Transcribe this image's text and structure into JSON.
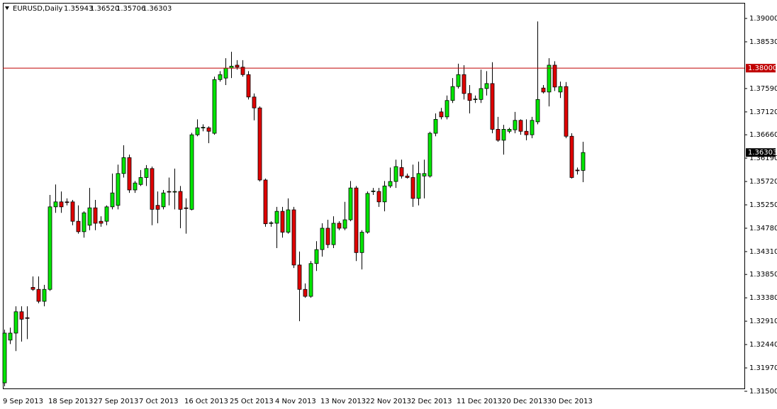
{
  "chart_data": {
    "type": "candlestick",
    "title": "EURUSD,Daily",
    "header_ohlc": [
      "1.35943",
      "1.36520",
      "1.35706",
      "1.36303"
    ],
    "categories": [
      "9 Sep 2013",
      null,
      null,
      null,
      null,
      null,
      null,
      null,
      "18 Sep 2013",
      null,
      null,
      null,
      null,
      null,
      null,
      null,
      "27 Sep 2013",
      null,
      null,
      null,
      null,
      null,
      null,
      null,
      "7 Oct 2013",
      null,
      null,
      null,
      null,
      null,
      null,
      null,
      "16 Oct 2013",
      null,
      null,
      null,
      null,
      null,
      null,
      null,
      "25 Oct 2013",
      null,
      null,
      null,
      null,
      null,
      null,
      null,
      "4 Nov 2013",
      null,
      null,
      null,
      null,
      null,
      null,
      null,
      "13 Nov 2013",
      null,
      null,
      null,
      null,
      null,
      null,
      null,
      "22 Nov 2013",
      null,
      null,
      null,
      null,
      null,
      null,
      null,
      "2 Dec 2013",
      null,
      null,
      null,
      null,
      null,
      null,
      null,
      "11 Dec 2013",
      null,
      null,
      null,
      null,
      null,
      null,
      null,
      "20 Dec 2013",
      null,
      null,
      null,
      null,
      null,
      null,
      null,
      "30 Dec 2013",
      null,
      null,
      null,
      null,
      null,
      null
    ],
    "open": [
      1.3167,
      1.3253,
      1.3267,
      1.331,
      1.3298,
      1.3359,
      1.3355,
      1.3331,
      1.3355,
      1.3521,
      1.3531,
      1.3531,
      1.3531,
      1.3492,
      1.3471,
      1.3484,
      1.3519,
      1.3492,
      1.3492,
      1.3521,
      1.3524,
      1.3588,
      1.362,
      1.3555,
      1.3566,
      1.358,
      1.3598,
      1.3524,
      1.3521,
      1.3552,
      1.3552,
      1.3552,
      1.3519,
      1.3516,
      1.3666,
      1.368,
      1.368,
      1.3669,
      1.3777,
      1.378,
      1.38,
      1.3806,
      1.3802,
      1.3787,
      1.3742,
      1.372,
      1.3575,
      1.3488,
      1.3488,
      1.3512,
      1.347,
      1.3515,
      1.3404,
      1.3355,
      1.3341,
      1.3407,
      1.3435,
      1.3478,
      1.3445,
      1.3488,
      1.3478,
      1.3495,
      1.3559,
      1.3429,
      1.347,
      1.3552,
      1.3552,
      1.3531,
      1.3563,
      1.3572,
      1.36,
      1.3583,
      1.358,
      1.3538,
      1.3583,
      1.3583,
      1.3669,
      1.3712,
      1.3702,
      1.3735,
      1.3763,
      1.3787,
      1.3749,
      1.3737,
      1.3737,
      1.3759,
      1.3769,
      1.3677,
      1.3655,
      1.3673,
      1.3676,
      1.3695,
      1.3673,
      1.3666,
      1.3692,
      1.376,
      1.3752,
      1.3806,
      1.3752,
      1.3763,
      1.3663,
      1.3595,
      1.35943
    ],
    "high": [
      1.3274,
      1.3278,
      1.3321,
      1.3321,
      1.3321,
      1.3381,
      1.3381,
      1.3364,
      1.3545,
      1.3566,
      1.3552,
      1.3538,
      1.3535,
      1.3524,
      1.3512,
      1.3559,
      1.3535,
      1.3502,
      1.3524,
      1.3588,
      1.3606,
      1.3645,
      1.3626,
      1.3573,
      1.3595,
      1.3605,
      1.3602,
      1.3552,
      1.3555,
      1.358,
      1.3598,
      1.3563,
      1.3538,
      1.367,
      1.3697,
      1.3687,
      1.3683,
      1.3783,
      1.3794,
      1.382,
      1.3833,
      1.3816,
      1.3816,
      1.3794,
      1.3749,
      1.3723,
      1.3578,
      1.3492,
      1.3521,
      1.3521,
      1.3538,
      1.3521,
      1.3431,
      1.3367,
      1.3412,
      1.3452,
      1.3488,
      1.3495,
      1.3502,
      1.3492,
      1.3531,
      1.3573,
      1.3563,
      1.3474,
      1.3552,
      1.3559,
      1.3559,
      1.3573,
      1.36,
      1.3616,
      1.3616,
      1.3588,
      1.3606,
      1.3612,
      1.3616,
      1.3672,
      1.3709,
      1.372,
      1.3745,
      1.378,
      1.3809,
      1.3806,
      1.3766,
      1.3745,
      1.3797,
      1.3794,
      1.3812,
      1.3702,
      1.3686,
      1.368,
      1.3712,
      1.3697,
      1.3697,
      1.3702,
      1.3894,
      1.3766,
      1.382,
      1.3814,
      1.3773,
      1.3772,
      1.3669,
      1.36,
      1.3652
    ],
    "low": [
      1.316,
      1.3245,
      1.3231,
      1.325,
      1.3255,
      1.3352,
      1.3327,
      1.3321,
      1.3352,
      1.3509,
      1.3509,
      1.3524,
      1.3484,
      1.3467,
      1.3459,
      1.3474,
      1.3474,
      1.3481,
      1.3484,
      1.3516,
      1.3516,
      1.358,
      1.3549,
      1.3549,
      1.3563,
      1.3563,
      1.3484,
      1.3488,
      1.3516,
      1.3524,
      1.3516,
      1.3478,
      1.3467,
      1.3514,
      1.3663,
      1.3673,
      1.3649,
      1.3666,
      1.3773,
      1.3766,
      1.378,
      1.3797,
      1.3783,
      1.3737,
      1.3695,
      1.3572,
      1.3481,
      1.3481,
      1.3438,
      1.3459,
      1.3467,
      1.3398,
      1.3291,
      1.3338,
      1.3338,
      1.3392,
      1.3421,
      1.3438,
      1.3438,
      1.3474,
      1.3474,
      1.3492,
      1.3412,
      1.3395,
      1.3467,
      1.3545,
      1.3521,
      1.3512,
      1.3559,
      1.3559,
      1.3578,
      1.3578,
      1.3521,
      1.3524,
      1.3538,
      1.358,
      1.3663,
      1.3697,
      1.3697,
      1.373,
      1.3759,
      1.3737,
      1.3709,
      1.373,
      1.373,
      1.3745,
      1.3669,
      1.3652,
      1.3626,
      1.3669,
      1.3669,
      1.3666,
      1.3655,
      1.3659,
      1.3687,
      1.3749,
      1.3723,
      1.3754,
      1.374,
      1.3659,
      1.3578,
      1.3586,
      1.35706
    ],
    "close": [
      1.3267,
      1.3267,
      1.331,
      1.3295,
      1.3297,
      1.3355,
      1.3331,
      1.3355,
      1.3521,
      1.3531,
      1.3521,
      1.353,
      1.3492,
      1.3471,
      1.3509,
      1.3519,
      1.3488,
      1.3488,
      1.3521,
      1.3549,
      1.3588,
      1.362,
      1.3555,
      1.3569,
      1.358,
      1.3598,
      1.3516,
      1.3516,
      1.3549,
      1.3551,
      1.3552,
      1.3516,
      1.3518,
      1.3666,
      1.368,
      1.3681,
      1.3673,
      1.3777,
      1.3787,
      1.38,
      1.3804,
      1.3802,
      1.3787,
      1.3742,
      1.372,
      1.3575,
      1.3487,
      1.3489,
      1.3512,
      1.347,
      1.3515,
      1.3404,
      1.3355,
      1.3341,
      1.3407,
      1.3435,
      1.3478,
      1.3445,
      1.3488,
      1.3478,
      1.3495,
      1.3559,
      1.3429,
      1.347,
      1.3548,
      1.3553,
      1.3531,
      1.3563,
      1.3572,
      1.3602,
      1.3583,
      1.358,
      1.3538,
      1.3588,
      1.3588,
      1.3669,
      1.3697,
      1.3702,
      1.3735,
      1.3763,
      1.3787,
      1.3749,
      1.3735,
      1.3738,
      1.3759,
      1.3769,
      1.3677,
      1.3655,
      1.3677,
      1.3677,
      1.3695,
      1.3673,
      1.3666,
      1.3695,
      1.3737,
      1.3752,
      1.3806,
      1.3762,
      1.3763,
      1.3663,
      1.358,
      1.3594,
      1.36303
    ],
    "up_color": "#00e600",
    "down_color": "#e00000",
    "ylim": [
      1.315,
      1.39314
    ],
    "yticks": [
      {
        "value": 1.39,
        "label": "1.39000"
      },
      {
        "value": 1.3853,
        "label": "1.38530"
      },
      {
        "value": 1.3759,
        "label": "1.37590"
      },
      {
        "value": 1.3712,
        "label": "1.37120"
      },
      {
        "value": 1.3666,
        "label": "1.36660"
      },
      {
        "value": 1.3619,
        "label": "1.36190"
      },
      {
        "value": 1.3572,
        "label": "1.35720"
      },
      {
        "value": 1.3525,
        "label": "1.35250"
      },
      {
        "value": 1.3478,
        "label": "1.34780"
      },
      {
        "value": 1.3431,
        "label": "1.34310"
      },
      {
        "value": 1.3385,
        "label": "1.33850"
      },
      {
        "value": 1.3338,
        "label": "1.33380"
      },
      {
        "value": 1.3291,
        "label": "1.32910"
      },
      {
        "value": 1.3244,
        "label": "1.32440"
      },
      {
        "value": 1.3197,
        "label": "1.31970"
      },
      {
        "value": 1.315,
        "label": "1.31500"
      }
    ],
    "hline": {
      "value": 1.38,
      "label": "1.38000",
      "color": "#c00000"
    },
    "last_price": {
      "value": 1.36303,
      "label": "1.36303"
    }
  }
}
